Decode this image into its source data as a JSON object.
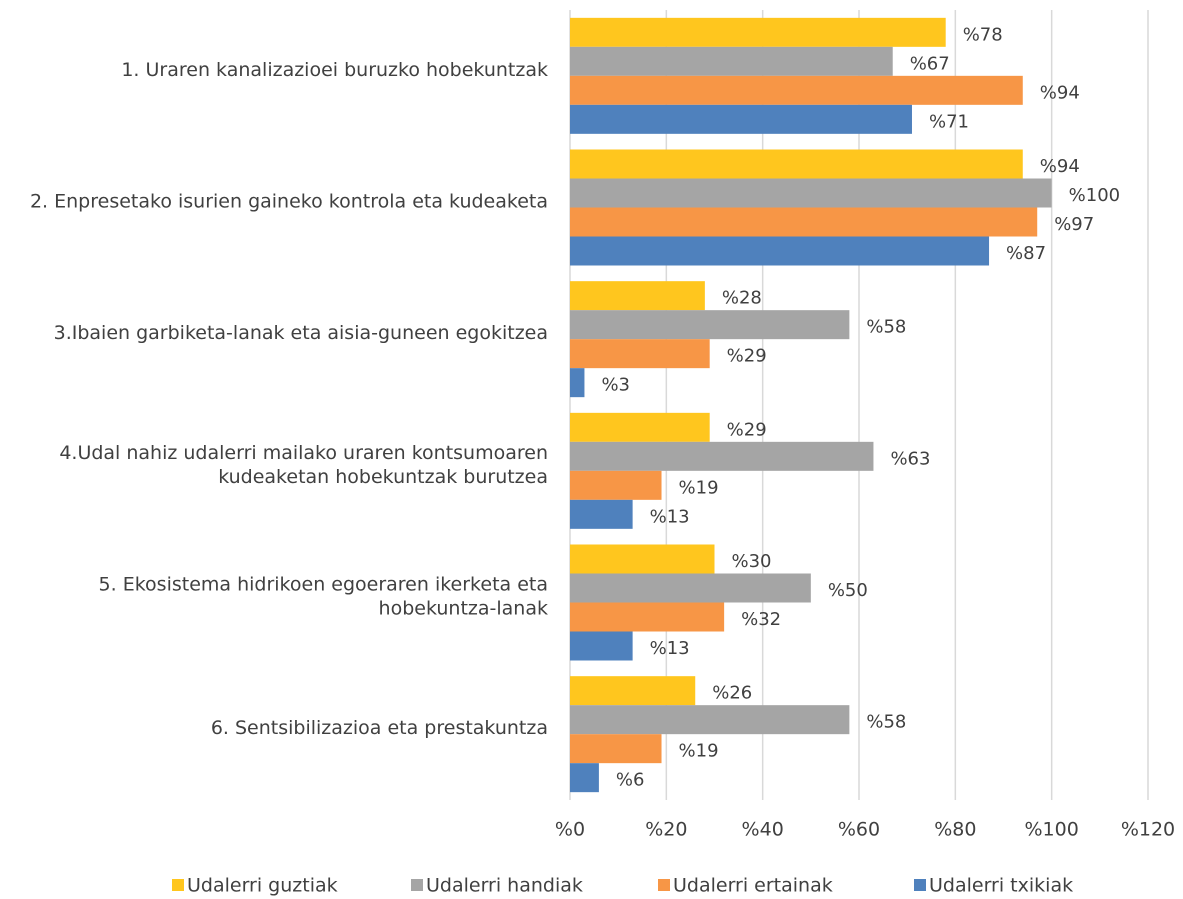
{
  "chart_data": {
    "type": "bar",
    "orientation": "horizontal",
    "categories": [
      "1. Uraren kanalizazioei buruzko hobekuntzak",
      "2. Enpresetako isurien gaineko kontrola eta kudeaketa",
      "3.Ibaien garbiketa-lanak eta aisia-guneen egokitzea",
      "4.Udal nahiz udalerri mailako uraren kontsumoaren kudeaketan hobekuntzak burutzea",
      "5. Ekosistema hidrikoen egoeraren ikerketa eta hobekuntza-lanak",
      "6. Sentsibilizazioa eta prestakuntza"
    ],
    "series": [
      {
        "name": "Udalerri guztiak",
        "color": "#FFC61E",
        "values": [
          78,
          94,
          28,
          29,
          30,
          26
        ],
        "value_labels": [
          "%78",
          "%94",
          "%28",
          "%29",
          "%30",
          "%26"
        ]
      },
      {
        "name": "Udalerri handiak",
        "color": "#A5A5A5",
        "values": [
          67,
          100,
          58,
          63,
          50,
          58
        ],
        "value_labels": [
          "%67",
          "%100",
          "%58",
          "%63",
          "%50",
          "%58"
        ]
      },
      {
        "name": "Udalerri ertainak",
        "color": "#F79646",
        "values": [
          94,
          97,
          29,
          19,
          32,
          19
        ],
        "value_labels": [
          "%94",
          "%97",
          "%29",
          "%19",
          "%32",
          "%19"
        ]
      },
      {
        "name": "Udalerri txikiak",
        "color": "#4F81BD",
        "values": [
          71,
          87,
          3,
          13,
          13,
          6
        ],
        "value_labels": [
          "%71",
          "%87",
          "%3",
          "%13",
          "%13",
          "%6"
        ]
      }
    ],
    "xlim": [
      0,
      120
    ],
    "xticks": [
      {
        "value": 0,
        "label": "%0"
      },
      {
        "value": 20,
        "label": "%20"
      },
      {
        "value": 40,
        "label": "%40"
      },
      {
        "value": 60,
        "label": "%60"
      },
      {
        "value": 80,
        "label": "%80"
      },
      {
        "value": 100,
        "label": "%100"
      },
      {
        "value": 120,
        "label": "%120"
      }
    ],
    "grid": true,
    "legend": "bottom"
  }
}
